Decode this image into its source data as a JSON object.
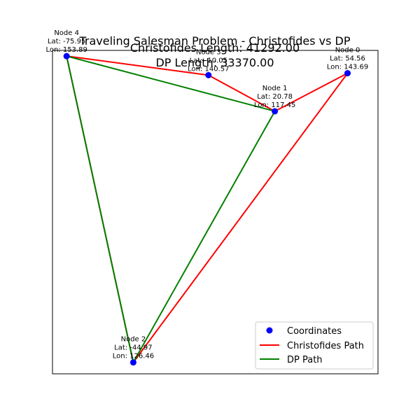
{
  "chart_data": {
    "type": "scatter",
    "title_lines": [
      "Traveling Salesman Problem - Christofides vs DP",
      "Christofides Length: 41292.00",
      "DP Length: 33370.00"
    ],
    "xlabel": "",
    "ylabel": "",
    "axes_visible": false,
    "grid": false,
    "xlim": [
      -82.5,
      68.7
    ],
    "ylim": [
      -50.0,
      120.0
    ],
    "nodes": [
      {
        "id": 0,
        "name": "Node 0",
        "lat_text": "Lat: 54.56",
        "lon_text": "Lon: 143.69",
        "x": 54.56,
        "y": 108.0
      },
      {
        "id": 1,
        "name": "Node 1",
        "lat_text": "Lat: 20.78",
        "lon_text": "Lon: 117.45",
        "x": 20.78,
        "y": 88.0
      },
      {
        "id": 2,
        "name": "Node 2",
        "lat_text": "Lat: -44.97",
        "lon_text": "Lon: 126.46",
        "x": -44.97,
        "y": -44.0
      },
      {
        "id": 3,
        "name": "Node 3",
        "lat_text": "Lat: -10.05",
        "lon_text": "Lon: 140.57",
        "x": -10.05,
        "y": 107.0
      },
      {
        "id": 4,
        "name": "Node 4",
        "lat_text": "Lat: -75.95",
        "lon_text": "Lon: 153.89",
        "x": -75.95,
        "y": 117.0
      }
    ],
    "series": [
      {
        "name": "Christofides Path",
        "color": "#ff0000",
        "path": [
          2,
          0,
          1,
          3,
          4,
          2
        ]
      },
      {
        "name": "DP Path",
        "color": "#008000",
        "path": [
          2,
          1,
          4,
          2
        ]
      }
    ],
    "coordinates_series": {
      "name": "Coordinates",
      "color": "#0000ff"
    },
    "legend_position": "lower-right"
  }
}
